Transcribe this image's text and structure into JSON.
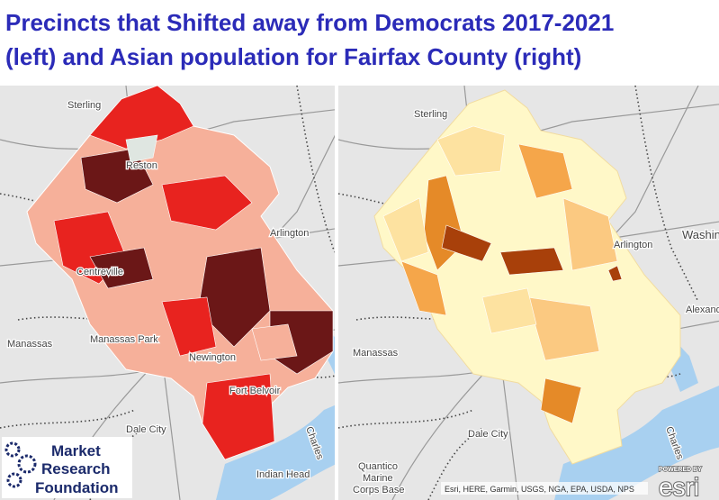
{
  "title": [
    "Precincts that Shifted away from Democrats 2017-2021",
    "(left) and Asian population for Fairfax County (right)"
  ],
  "left_map": {
    "labels": [
      "Sterling",
      "Reston",
      "Arlington",
      "Centreville",
      "Manassas",
      "Manassas Park",
      "Newington",
      "Fort Belvoir",
      "Dale City",
      "Indian Head",
      "Charles"
    ]
  },
  "right_map": {
    "labels": [
      "Sterling",
      "Arlington",
      "Washington",
      "Alexandria",
      "Manassas",
      "Dale City",
      "Quantico",
      "Marine",
      "Corps Base",
      "Charles"
    ]
  },
  "logo": {
    "lines": [
      "Market",
      "Research",
      "Foundation"
    ]
  },
  "attribution": "Esri, HERE, Garmin, USGS, NGA, EPA, USDA, NPS",
  "esri": {
    "powered_by": "POWERED BY",
    "brand": "esri"
  }
}
